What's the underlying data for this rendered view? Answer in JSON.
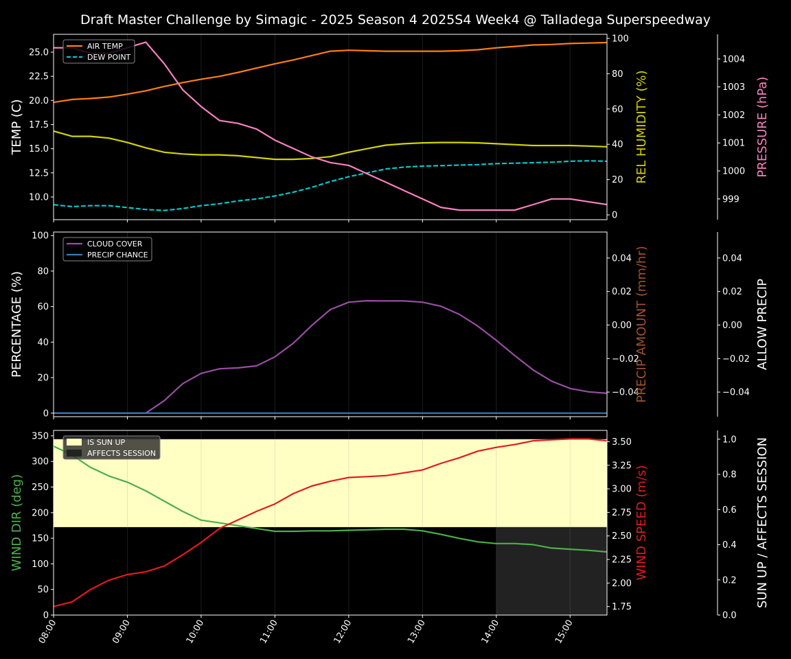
{
  "title": "Draft Master Challenge by Simagic - 2025 Season 4 2025S4 Week4 @ Talladega Superspeedway",
  "colors": {
    "air_temp": "#ff7f0e",
    "dew_point": "#00c8c8",
    "rel_humidity": "#d4d400",
    "pressure": "#f781bf",
    "cloud_cover": "#984ea3",
    "precip_chance": "#377eb8",
    "precip_amount": "#a0522d",
    "wind_dir": "#4daf4a",
    "wind_speed": "#e41a1c",
    "sun_up": "#ffffc4",
    "affects_session": "#222222",
    "background": "#000000"
  },
  "chart_data": [
    {
      "type": "line",
      "x": [
        "08:00",
        "08:15",
        "08:30",
        "08:45",
        "09:00",
        "09:15",
        "09:30",
        "09:45",
        "10:00",
        "10:15",
        "10:30",
        "10:45",
        "11:00",
        "11:15",
        "11:30",
        "11:45",
        "12:00",
        "12:15",
        "12:30",
        "12:45",
        "13:00",
        "13:15",
        "13:30",
        "13:45",
        "14:00",
        "14:15",
        "14:30",
        "14:45",
        "15:00",
        "15:15",
        "15:30"
      ],
      "xticks": [
        "08:00",
        "09:00",
        "10:00",
        "11:00",
        "12:00",
        "13:00",
        "14:00",
        "15:00"
      ],
      "grid": "vertical",
      "legend": "top-left",
      "axes": [
        {
          "label": "TEMP (C)",
          "side": "left",
          "ylim": [
            7.65,
            26.85
          ],
          "ticks": [
            10.0,
            12.5,
            15.0,
            17.5,
            20.0,
            22.5,
            25.0
          ],
          "tick_decimals": 1,
          "color": "#ffffff"
        },
        {
          "label": "REL HUMIDITY (%)",
          "side": "right",
          "ylim": [
            -2.7,
            102.3
          ],
          "ticks": [
            0,
            20,
            40,
            60,
            80,
            100
          ],
          "tick_decimals": 0,
          "color": "#d4d400"
        },
        {
          "label": "PRESSURE (hPa)",
          "side": "right-outer",
          "ylim": [
            998.26,
            1004.88
          ],
          "ticks": [
            999,
            1000,
            1001,
            1002,
            1003,
            1004
          ],
          "tick_decimals": 0,
          "color": "#f781bf"
        }
      ],
      "series": [
        {
          "name": "AIR TEMP",
          "axis": 0,
          "color": "#ff7f0e",
          "dash": false,
          "in_legend": true,
          "values": [
            19.8,
            20.1,
            20.2,
            20.35,
            20.65,
            21.0,
            21.45,
            21.85,
            22.2,
            22.5,
            22.9,
            23.35,
            23.8,
            24.2,
            24.65,
            25.1,
            25.2,
            25.15,
            25.1,
            25.1,
            25.1,
            25.1,
            25.15,
            25.25,
            25.45,
            25.6,
            25.75,
            25.8,
            25.9,
            25.95,
            26.0
          ]
        },
        {
          "name": "DEW POINT",
          "axis": 0,
          "color": "#00c8c8",
          "dash": true,
          "in_legend": true,
          "values": [
            9.2,
            9.0,
            9.1,
            9.1,
            8.9,
            8.7,
            8.6,
            8.8,
            9.1,
            9.3,
            9.6,
            9.8,
            10.1,
            10.5,
            11.0,
            11.6,
            12.1,
            12.5,
            12.9,
            13.1,
            13.2,
            13.25,
            13.3,
            13.35,
            13.45,
            13.5,
            13.55,
            13.6,
            13.7,
            13.75,
            13.7
          ]
        },
        {
          "axis": 1,
          "color": "#d4d400",
          "dash": false,
          "in_legend": false,
          "values": [
            47.5,
            44.5,
            44.5,
            43.5,
            41,
            38,
            35.5,
            34.5,
            34,
            34,
            33.5,
            32.5,
            31.5,
            31.5,
            32,
            33,
            35.5,
            37.5,
            39.5,
            40.3,
            40.8,
            41,
            41,
            40.8,
            40.3,
            39.8,
            39.3,
            39.3,
            39.3,
            39,
            38.6
          ]
        },
        {
          "axis": 2,
          "color": "#f781bf",
          "dash": false,
          "in_legend": false,
          "values": [
            1004.4,
            1004.4,
            1004.2,
            1004.2,
            1004.4,
            1004.6,
            1003.83,
            1002.9,
            1002.3,
            1001.8,
            1001.7,
            1001.5,
            1001.1,
            1000.8,
            1000.5,
            1000.3,
            1000.2,
            999.9,
            999.6,
            999.3,
            999.0,
            998.7,
            998.6,
            998.6,
            998.6,
            998.6,
            998.8,
            999.0,
            999.0,
            998.9,
            998.8
          ]
        }
      ]
    },
    {
      "type": "line",
      "grid": "vertical",
      "legend": "top-left",
      "axes": [
        {
          "label": "PERCENTAGE (%)",
          "side": "left",
          "ylim": [
            -2,
            102
          ],
          "ticks": [
            0,
            20,
            40,
            60,
            80,
            100
          ],
          "tick_decimals": 0,
          "color": "#ffffff"
        },
        {
          "label": "PRECIP AMOUNT (mm/hr)",
          "side": "right",
          "ylim": [
            -0.0547,
            0.0555
          ],
          "ticks": [
            -0.04,
            -0.02,
            0.0,
            0.02,
            0.04
          ],
          "tick_decimals": 2,
          "color": "#a0522d"
        },
        {
          "label": "ALLOW PRECIP",
          "side": "right-outer",
          "ylim": [
            -0.0547,
            0.0555
          ],
          "ticks": [
            -0.04,
            -0.02,
            0.0,
            0.02,
            0.04
          ],
          "tick_decimals": 2,
          "color": "#ffffff"
        }
      ],
      "series": [
        {
          "name": "CLOUD COVER",
          "axis": 0,
          "color": "#984ea3",
          "dash": false,
          "in_legend": true,
          "values": [
            0,
            0,
            0,
            0,
            0,
            0,
            7,
            16.6,
            22.4,
            25,
            25.5,
            26.6,
            31.7,
            39.4,
            49.4,
            58.3,
            62.5,
            63.3,
            63.2,
            63.2,
            62.5,
            60.2,
            55.6,
            49,
            41,
            32.4,
            24.3,
            18,
            13.9,
            12,
            11.2
          ]
        },
        {
          "name": "PRECIP CHANCE",
          "axis": 0,
          "color": "#377eb8",
          "dash": false,
          "in_legend": true,
          "values": [
            0,
            0,
            0,
            0,
            0,
            0,
            0,
            0,
            0,
            0,
            0,
            0,
            0,
            0,
            0,
            0,
            0,
            0,
            0,
            0,
            0,
            0,
            0,
            0,
            0,
            0,
            0,
            0,
            0,
            0,
            0
          ]
        }
      ]
    },
    {
      "type": "line",
      "grid": "vertical",
      "legend": "top-left",
      "axes": [
        {
          "label": "WIND DIR (deg)",
          "side": "left",
          "ylim": [
            0,
            360.6
          ],
          "ticks": [
            0,
            50,
            100,
            150,
            200,
            250,
            300,
            350
          ],
          "tick_decimals": 0,
          "color": "#4daf4a"
        },
        {
          "label": "WIND SPEED (m/s)",
          "side": "right",
          "ylim": [
            1.66,
            3.62
          ],
          "ticks": [
            1.75,
            2.0,
            2.25,
            2.5,
            2.75,
            3.0,
            3.25,
            3.5
          ],
          "tick_decimals": 2,
          "color": "#e41a1c"
        },
        {
          "label": "SUN UP / AFFECTS SESSION",
          "side": "right-outer",
          "ylim": [
            0,
            1.05
          ],
          "ticks": [
            0.0,
            0.2,
            0.4,
            0.6,
            0.8,
            1.0
          ],
          "tick_decimals": 1,
          "color": "#ffffff"
        }
      ],
      "bands": [
        {
          "name": "IS SUN UP",
          "axis": 2,
          "from": "08:00",
          "to": "15:30",
          "y0": 0.5,
          "y1": 1.0,
          "color": "#ffffc4"
        },
        {
          "name": "AFFECTS SESSION",
          "axis": 2,
          "from": "14:00",
          "to": "15:30",
          "y0": 0.0,
          "y1": 0.5,
          "color": "#222222"
        }
      ],
      "series": [
        {
          "axis": 0,
          "color": "#4daf4a",
          "dash": false,
          "in_legend": false,
          "values": [
            329.8,
            312.6,
            288.5,
            271.6,
            259.5,
            242.6,
            222.5,
            202.4,
            185.4,
            180,
            174.6,
            169,
            163.5,
            163.5,
            164.5,
            164.5,
            165.5,
            166.5,
            167.5,
            167.5,
            164.5,
            157.7,
            149.7,
            143,
            139.7,
            139.7,
            137.5,
            130.8,
            128.6,
            126.4,
            123.3
          ]
        },
        {
          "axis": 1,
          "color": "#e41a1c",
          "dash": false,
          "in_legend": false,
          "values": [
            1.75,
            1.8,
            1.93,
            2.03,
            2.09,
            2.12,
            2.18,
            2.3,
            2.43,
            2.58,
            2.67,
            2.76,
            2.84,
            2.95,
            3.03,
            3.08,
            3.12,
            3.13,
            3.14,
            3.17,
            3.2,
            3.27,
            3.33,
            3.4,
            3.44,
            3.47,
            3.51,
            3.52,
            3.53,
            3.53,
            3.51
          ]
        }
      ]
    }
  ]
}
